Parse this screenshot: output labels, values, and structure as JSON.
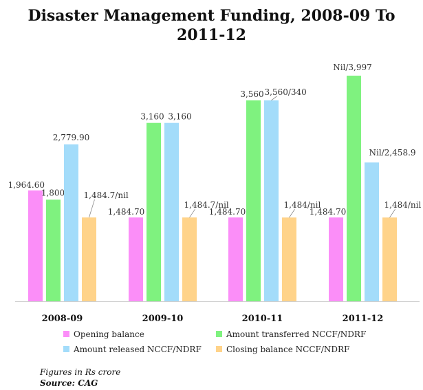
{
  "chart_data": {
    "type": "bar",
    "title": "Disaster Management Funding, 2008-09 To 2011-12",
    "title_lines": [
      "Disaster Management Funding, 2008-09 To",
      "2011-12"
    ],
    "categories": [
      "2008-09",
      "2009-10",
      "2010-11",
      "2011-12"
    ],
    "series": [
      {
        "name": "Opening balance",
        "color": "#fb8ef8",
        "values": [
          1964.6,
          1484.7,
          1484.7,
          1484.7
        ],
        "labels": [
          "1,964.60",
          "1,484.70",
          "1,484.70",
          "1,484.70"
        ]
      },
      {
        "name": "Amount transferred NCCF/NDRF",
        "color": "#7ff27f",
        "values": [
          1800,
          3160,
          3560,
          3997
        ],
        "labels": [
          "1,800",
          "3,160",
          "3,560",
          "Nil/3,997"
        ]
      },
      {
        "name": "Amount released NCCF/NDRF",
        "color": "#a3dcfa",
        "values": [
          2779.9,
          3160,
          3560,
          2458.9
        ],
        "labels": [
          "2,779.90",
          "3,160",
          "3,560/340",
          "Nil/2,458.9"
        ]
      },
      {
        "name": "Closing balance NCCF/NDRF",
        "color": "#ffd38a",
        "values": [
          1484.7,
          1484.7,
          1484,
          1484
        ],
        "labels": [
          "1,484.7/nil",
          "1,484.7/nil",
          "1,484/nil",
          "1,484/nil"
        ]
      }
    ],
    "ylim": [
      0,
      4200
    ],
    "legend_position": "bottom",
    "grid": false,
    "xlabel": "",
    "ylabel": ""
  },
  "footnote": "Figures in Rs crore",
  "source": "Source: CAG"
}
